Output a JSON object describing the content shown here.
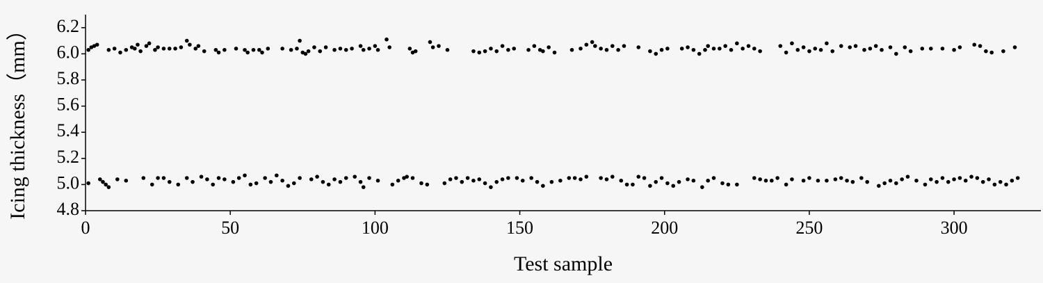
{
  "chart_data": {
    "type": "scatter",
    "x_label": "Test sample",
    "y_label": "Icing thickness（mm）",
    "color": "#000000",
    "xlim": [
      0,
      330
    ],
    "ylim": [
      4.8,
      6.3
    ],
    "xticks": [
      0,
      50,
      100,
      150,
      200,
      250,
      300
    ],
    "yticks": [
      4.8,
      {
        "value": 5,
        "label": "5.0"
      },
      5.2,
      5.4,
      5.6,
      5.8,
      {
        "value": 6,
        "label": "6.0"
      },
      6.2
    ],
    "x": [
      1,
      2,
      3,
      4,
      8,
      10,
      12,
      14,
      16,
      17,
      18,
      19,
      21,
      22,
      24,
      25,
      27,
      29,
      31,
      33,
      35,
      36,
      38,
      39,
      41,
      45,
      46,
      48,
      52,
      55,
      56,
      58,
      60,
      61,
      63,
      68,
      71,
      73,
      74,
      75,
      76,
      77,
      79,
      81,
      83,
      86,
      88,
      90,
      92,
      95,
      96,
      98,
      100,
      101,
      104,
      105,
      112,
      113,
      114,
      119,
      120,
      122,
      125,
      134,
      136,
      138,
      140,
      142,
      144,
      146,
      148,
      153,
      155,
      157,
      158,
      160,
      162,
      168,
      171,
      173,
      175,
      176,
      178,
      180,
      182,
      184,
      186,
      191,
      195,
      197,
      199,
      201,
      206,
      208,
      210,
      212,
      214,
      215,
      217,
      219,
      221,
      223,
      225,
      227,
      229,
      231,
      233,
      240,
      242,
      244,
      246,
      248,
      250,
      252,
      254,
      256,
      258,
      261,
      264,
      266,
      269,
      271,
      273,
      275,
      278,
      280,
      283,
      285,
      289,
      292,
      296,
      300,
      302,
      307,
      309,
      311,
      313,
      317,
      321,
      1,
      5,
      6,
      7,
      8,
      11,
      14,
      20,
      23,
      25,
      27,
      29,
      32,
      35,
      37,
      40,
      42,
      44,
      46,
      48,
      51,
      53,
      55,
      57,
      59,
      62,
      64,
      66,
      68,
      70,
      72,
      74,
      78,
      80,
      82,
      84,
      86,
      88,
      90,
      93,
      95,
      96,
      98,
      101,
      106,
      108,
      110,
      111,
      113,
      116,
      118,
      124,
      126,
      128,
      130,
      132,
      134,
      136,
      138,
      140,
      142,
      144,
      146,
      149,
      151,
      154,
      156,
      158,
      161,
      164,
      167,
      169,
      171,
      173,
      178,
      180,
      182,
      185,
      187,
      189,
      191,
      193,
      195,
      197,
      199,
      201,
      203,
      205,
      208,
      210,
      213,
      215,
      217,
      220,
      222,
      225,
      231,
      233,
      235,
      237,
      239,
      242,
      244,
      248,
      250,
      253,
      256,
      259,
      261,
      263,
      265,
      268,
      270,
      274,
      276,
      278,
      280,
      282,
      284,
      287,
      290,
      292,
      294,
      296,
      298,
      300,
      302,
      304,
      306,
      308,
      310,
      312,
      314,
      316,
      318,
      320,
      322
    ],
    "values": [
      6.03,
      6.05,
      6.06,
      6.07,
      6.03,
      6.04,
      6.01,
      6.03,
      6.05,
      6.04,
      6.07,
      6.02,
      6.06,
      6.08,
      6.03,
      6.05,
      6.04,
      6.04,
      6.04,
      6.05,
      6.1,
      6.07,
      6.04,
      6.06,
      6.02,
      6.03,
      6.01,
      6.03,
      6.04,
      6.03,
      6.01,
      6.03,
      6.03,
      6.01,
      6.04,
      6.04,
      6.03,
      6.04,
      6.1,
      6.01,
      6,
      6.02,
      6.05,
      6.02,
      6.05,
      6.03,
      6.04,
      6.03,
      6.04,
      6.06,
      6.03,
      6.04,
      6.06,
      6.03,
      6.11,
      6.05,
      6.04,
      6.01,
      6.02,
      6.09,
      6.05,
      6.06,
      6.03,
      6.02,
      6.01,
      6.02,
      6.04,
      6.02,
      6.06,
      6.03,
      6.04,
      6.03,
      6.06,
      6.03,
      6.02,
      6.05,
      6.01,
      6.03,
      6.04,
      6.07,
      6.09,
      6.06,
      6.04,
      6.03,
      6.06,
      6.03,
      6.06,
      6.05,
      6.02,
      6,
      6.03,
      6.04,
      6.04,
      6.05,
      6.03,
      6,
      6.03,
      6.06,
      6.04,
      6.04,
      6.06,
      6.03,
      6.08,
      6.04,
      6.06,
      6.04,
      6.02,
      6.06,
      6.01,
      6.08,
      6.03,
      6.05,
      6.02,
      6.04,
      6.03,
      6.08,
      6.02,
      6.06,
      6.05,
      6.06,
      6.03,
      6.04,
      6.06,
      6.03,
      6.05,
      6,
      6.05,
      6.02,
      6.04,
      6.04,
      6.04,
      6.03,
      6.05,
      6.07,
      6.06,
      6.02,
      6.01,
      6.02,
      6.05,
      5.01,
      5.04,
      5.02,
      5,
      4.98,
      5.04,
      5.03,
      5.05,
      5,
      5.05,
      5.05,
      5.02,
      5,
      5.05,
      5.02,
      5.06,
      5.04,
      5,
      5.05,
      5.04,
      5.02,
      5.05,
      5.07,
      5,
      5.01,
      5.05,
      5.02,
      5.07,
      5.03,
      4.99,
      5.01,
      5.05,
      5.04,
      5.06,
      5.02,
      5,
      5.04,
      5.02,
      5.05,
      5.06,
      5.02,
      4.98,
      5.05,
      5.03,
      5,
      5.03,
      5.05,
      5.06,
      5.05,
      5.01,
      5,
      5.01,
      5.04,
      5.05,
      5.02,
      5.05,
      5.03,
      5.04,
      5.01,
      4.98,
      5.02,
      5.04,
      5.05,
      5.05,
      5.03,
      5.05,
      5.02,
      4.99,
      5.02,
      5.03,
      5.05,
      5.05,
      5.04,
      5.06,
      5.05,
      5.04,
      5.06,
      5.03,
      5,
      5,
      5.06,
      5.05,
      4.99,
      5.02,
      5.05,
      5.01,
      4.99,
      5.02,
      5.04,
      5.03,
      4.98,
      5.03,
      5.05,
      5.01,
      5,
      5,
      5.05,
      5.04,
      5.03,
      5.03,
      5.05,
      5,
      5.04,
      5.03,
      5.05,
      5.03,
      5.03,
      5.04,
      5.05,
      5.03,
      5.02,
      5.05,
      5.02,
      4.99,
      5.01,
      5.03,
      5.01,
      5.04,
      5.06,
      5.03,
      5,
      5.04,
      5.02,
      5.05,
      5.02,
      5.04,
      5.05,
      5.03,
      5.06,
      5.05,
      5.02,
      5.04,
      5,
      5.02,
      5,
      5.03,
      5.05
    ]
  }
}
